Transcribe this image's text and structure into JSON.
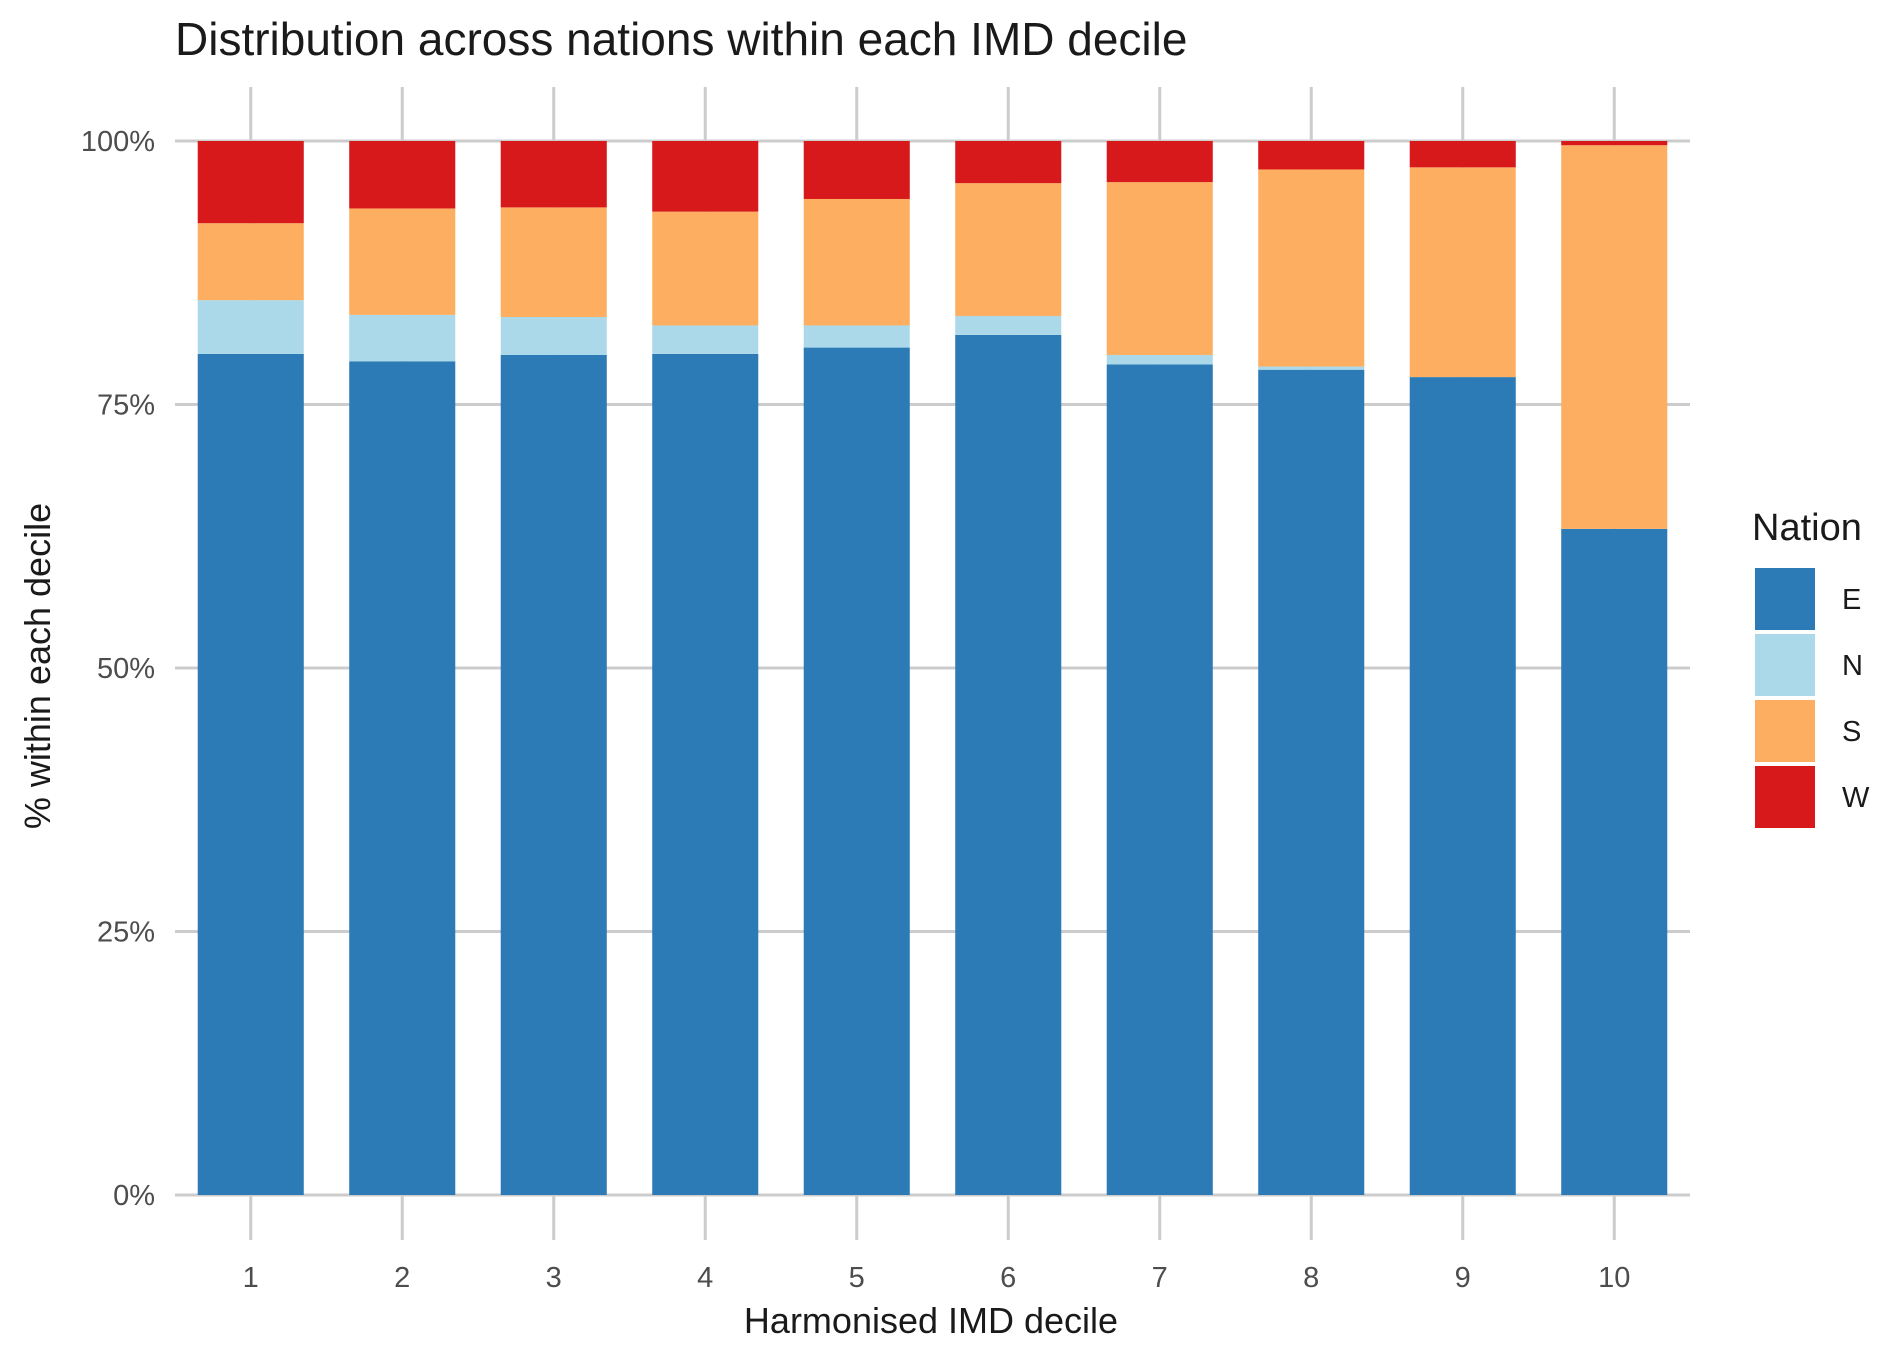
{
  "chart_data": {
    "type": "bar",
    "stacked": true,
    "title": "Distribution across nations within each IMD decile",
    "xlabel": "Harmonised IMD decile",
    "ylabel": "% within each decile",
    "categories": [
      "1",
      "2",
      "3",
      "4",
      "5",
      "6",
      "7",
      "8",
      "9",
      "10"
    ],
    "ylim": [
      0,
      100
    ],
    "yticks": [
      0,
      25,
      50,
      75,
      100
    ],
    "ytick_labels": [
      "0%",
      "25%",
      "50%",
      "75%",
      "100%"
    ],
    "grid": true,
    "series": [
      {
        "name": "E",
        "color": "#2c7bb6",
        "values": [
          79.8,
          79.1,
          79.7,
          79.8,
          80.4,
          81.6,
          78.8,
          78.3,
          77.6,
          63.2
        ]
      },
      {
        "name": "N",
        "color": "#abd9e9",
        "values": [
          5.1,
          4.4,
          3.6,
          2.7,
          2.1,
          1.8,
          0.9,
          0.3,
          0.0,
          0.0
        ]
      },
      {
        "name": "S",
        "color": "#fdae61",
        "values": [
          7.3,
          10.1,
          10.4,
          10.8,
          12.0,
          12.6,
          16.4,
          18.7,
          19.9,
          36.4
        ]
      },
      {
        "name": "W",
        "color": "#d7191c",
        "values": [
          7.8,
          6.4,
          6.3,
          6.7,
          5.5,
          4.0,
          3.9,
          2.7,
          2.5,
          0.4
        ]
      }
    ],
    "legend": {
      "title": "Nation",
      "position": "right"
    }
  }
}
